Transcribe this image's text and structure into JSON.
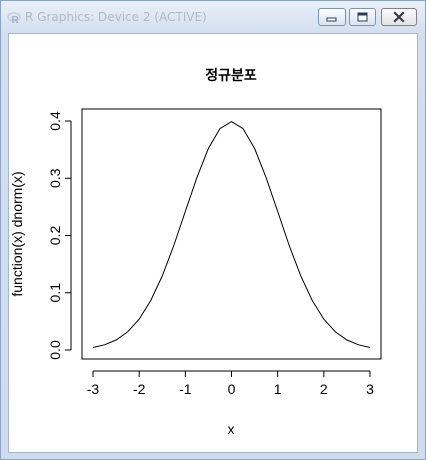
{
  "window": {
    "title": "R Graphics: Device 2 (ACTIVE)",
    "icons": {
      "app": "r-logo-icon",
      "minimize": "minimize-icon",
      "maximize": "maximize-icon",
      "close": "close-icon"
    }
  },
  "chart_data": {
    "type": "line",
    "title": "정규분포",
    "xlabel": "x",
    "ylabel": "function(x) dnorm(x)",
    "xlim": [
      -3,
      3
    ],
    "ylim": [
      0,
      0.4
    ],
    "xticks": [
      "-3",
      "-2",
      "-1",
      "0",
      "1",
      "2",
      "3"
    ],
    "yticks": [
      "0.0",
      "0.1",
      "0.2",
      "0.3",
      "0.4"
    ],
    "grid": false,
    "series": [
      {
        "x": [
          -3,
          -2.75,
          -2.5,
          -2.25,
          -2,
          -1.75,
          -1.5,
          -1.25,
          -1,
          -0.75,
          -0.5,
          -0.25,
          0,
          0.25,
          0.5,
          0.75,
          1,
          1.25,
          1.5,
          1.75,
          2,
          2.25,
          2.5,
          2.75,
          3
        ],
        "y": [
          0.0044,
          0.0091,
          0.0175,
          0.0317,
          0.054,
          0.0863,
          0.1295,
          0.1826,
          0.242,
          0.3011,
          0.3521,
          0.3867,
          0.3989,
          0.3867,
          0.3521,
          0.3011,
          0.242,
          0.1826,
          0.1295,
          0.0863,
          0.054,
          0.0317,
          0.0175,
          0.0091,
          0.0044
        ]
      }
    ]
  }
}
